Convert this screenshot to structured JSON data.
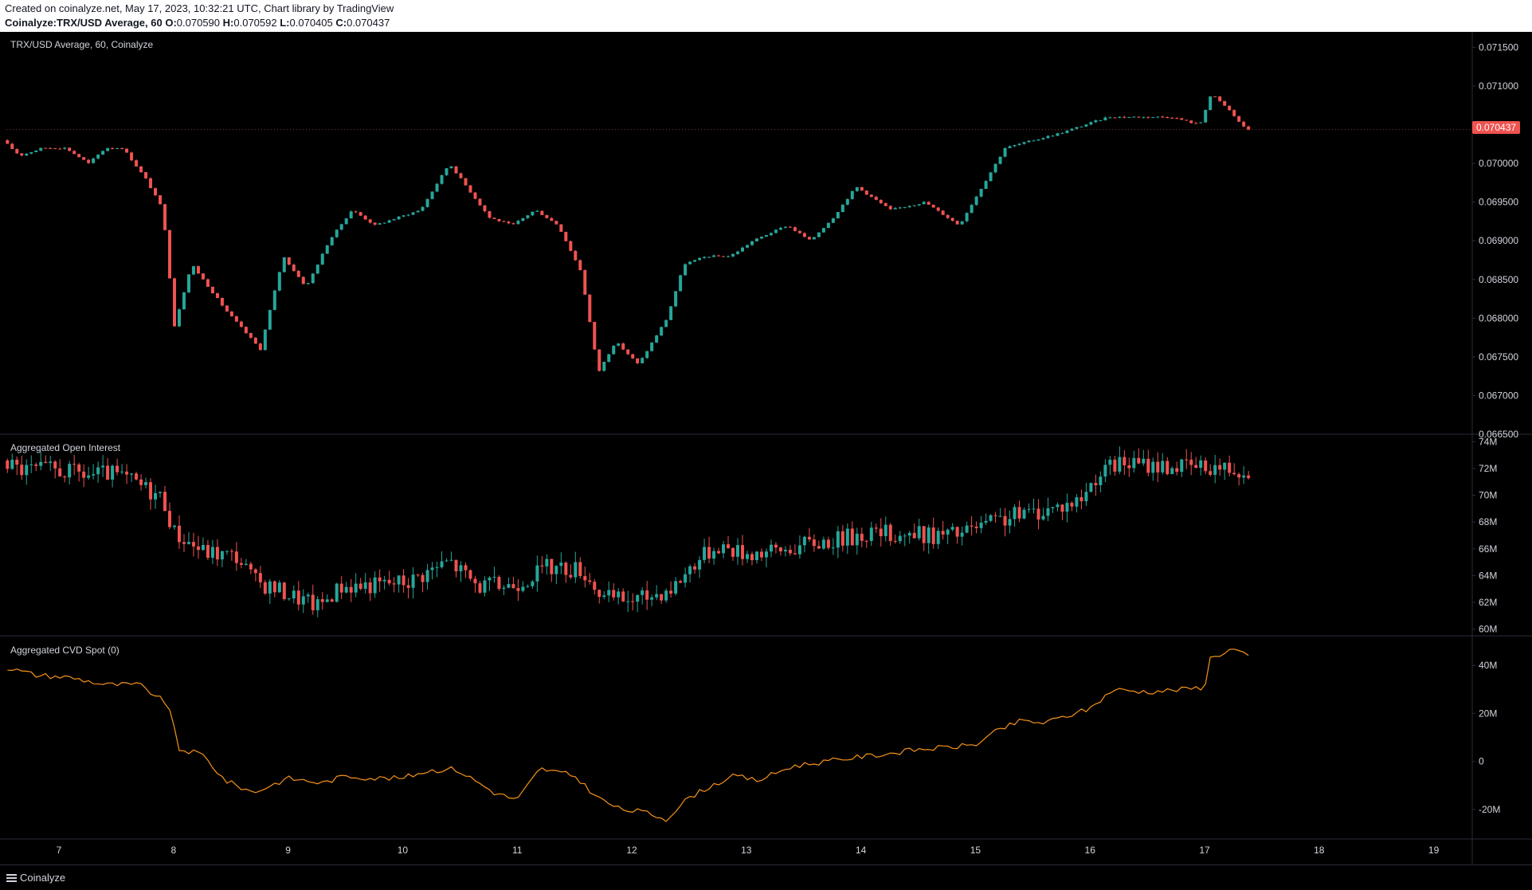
{
  "header": {
    "created_line": "Created on coinalyze.net, May 17, 2023, 10:32:21 UTC, Chart library by TradingView",
    "symbol": "Coinalyze:TRX/USD Average, 60",
    "o_label": "O:",
    "o_value": "0.070590",
    "h_label": "H:",
    "h_value": "0.070592",
    "l_label": "L:",
    "l_value": "0.070405",
    "c_label": "C:",
    "c_value": "0.070437"
  },
  "footer": {
    "brand": "Coinalyze"
  },
  "colors": {
    "up": "#26a69a",
    "down": "#ef5350",
    "cvd_line": "#f7931a",
    "grid": "#2a2e39",
    "text": "#d1d4dc",
    "background": "#000000"
  },
  "chart_data": [
    {
      "type": "candlestick",
      "title": "TRX/USD Average, 60, Coinalyze",
      "ylim": [
        0.0665,
        0.0717
      ],
      "y_ticks": [
        "0.071500",
        "0.071000",
        "0.070500",
        "0.070000",
        "0.069500",
        "0.069000",
        "0.068500",
        "0.068000",
        "0.067500",
        "0.067000",
        "0.066500"
      ],
      "last_price": "0.070437",
      "day_start": 6.55,
      "path_points": [
        [
          6.55,
          0.0703
        ],
        [
          6.7,
          0.0701
        ],
        [
          6.9,
          0.0702
        ],
        [
          7.1,
          0.0702
        ],
        [
          7.3,
          0.07
        ],
        [
          7.45,
          0.0702
        ],
        [
          7.6,
          0.0702
        ],
        [
          7.8,
          0.0698
        ],
        [
          7.95,
          0.0694
        ],
        [
          8.05,
          0.0679
        ],
        [
          8.2,
          0.0687
        ],
        [
          8.5,
          0.0681
        ],
        [
          8.8,
          0.0676
        ],
        [
          9.0,
          0.0688
        ],
        [
          9.2,
          0.0684
        ],
        [
          9.4,
          0.069
        ],
        [
          9.6,
          0.0694
        ],
        [
          9.8,
          0.0692
        ],
        [
          10.0,
          0.0693
        ],
        [
          10.2,
          0.0694
        ],
        [
          10.45,
          0.07
        ],
        [
          10.6,
          0.0697
        ],
        [
          10.8,
          0.0693
        ],
        [
          11.0,
          0.0692
        ],
        [
          11.2,
          0.0694
        ],
        [
          11.4,
          0.0692
        ],
        [
          11.6,
          0.0686
        ],
        [
          11.75,
          0.0673
        ],
        [
          11.9,
          0.0677
        ],
        [
          12.1,
          0.0674
        ],
        [
          12.35,
          0.068
        ],
        [
          12.5,
          0.0687
        ],
        [
          12.7,
          0.0688
        ],
        [
          12.9,
          0.0688
        ],
        [
          13.1,
          0.069
        ],
        [
          13.4,
          0.0692
        ],
        [
          13.6,
          0.069
        ],
        [
          13.8,
          0.0693
        ],
        [
          14.0,
          0.0697
        ],
        [
          14.3,
          0.0694
        ],
        [
          14.6,
          0.0695
        ],
        [
          14.9,
          0.0692
        ],
        [
          15.1,
          0.0697
        ],
        [
          15.3,
          0.0702
        ],
        [
          15.55,
          0.0703
        ],
        [
          15.8,
          0.0704
        ],
        [
          16.0,
          0.0705
        ],
        [
          16.2,
          0.0706
        ],
        [
          16.5,
          0.0706
        ],
        [
          16.75,
          0.0706
        ],
        [
          17.0,
          0.0705
        ],
        [
          17.1,
          0.0709
        ],
        [
          17.25,
          0.0707
        ],
        [
          17.4,
          0.07044
        ]
      ]
    },
    {
      "type": "candlestick",
      "title": "Aggregated Open Interest",
      "ylim": [
        59.5,
        74.5
      ],
      "y_ticks": [
        "74M",
        "72M",
        "70M",
        "68M",
        "66M",
        "64M",
        "62M",
        "60M"
      ],
      "path_points": [
        [
          6.55,
          72.6
        ],
        [
          6.7,
          71.9
        ],
        [
          7.0,
          71.9
        ],
        [
          7.3,
          71.5
        ],
        [
          7.5,
          71.6
        ],
        [
          7.7,
          71.0
        ],
        [
          7.95,
          69.8
        ],
        [
          8.05,
          67.2
        ],
        [
          8.3,
          65.8
        ],
        [
          8.6,
          65.4
        ],
        [
          8.75,
          63.6
        ],
        [
          9.0,
          62.8
        ],
        [
          9.3,
          61.7
        ],
        [
          9.5,
          63.2
        ],
        [
          9.8,
          63.3
        ],
        [
          10.1,
          63.6
        ],
        [
          10.45,
          65.1
        ],
        [
          10.7,
          63.2
        ],
        [
          11.0,
          63.3
        ],
        [
          11.3,
          64.6
        ],
        [
          11.6,
          64.5
        ],
        [
          11.8,
          62.3
        ],
        [
          12.1,
          62.2
        ],
        [
          12.4,
          63.1
        ],
        [
          12.6,
          65.1
        ],
        [
          12.8,
          66.3
        ],
        [
          13.0,
          65.7
        ],
        [
          13.3,
          65.8
        ],
        [
          13.6,
          66.4
        ],
        [
          13.9,
          66.8
        ],
        [
          14.1,
          67.2
        ],
        [
          14.4,
          67.1
        ],
        [
          14.7,
          67.0
        ],
        [
          14.9,
          67.1
        ],
        [
          15.1,
          67.7
        ],
        [
          15.4,
          68.5
        ],
        [
          15.7,
          69.0
        ],
        [
          15.95,
          69.6
        ],
        [
          16.1,
          71.5
        ],
        [
          16.3,
          72.4
        ],
        [
          16.5,
          72.3
        ],
        [
          16.7,
          72.2
        ],
        [
          17.0,
          72.1
        ],
        [
          17.1,
          72.2
        ],
        [
          17.25,
          72.0
        ],
        [
          17.4,
          71.9
        ]
      ]
    },
    {
      "type": "line",
      "title": "Aggregated CVD Spot (0)",
      "ylim": [
        -32,
        52
      ],
      "y_ticks": [
        "40M",
        "20M",
        "0",
        "-20M"
      ],
      "path_points": [
        [
          6.55,
          39
        ],
        [
          6.8,
          36
        ],
        [
          7.1,
          35
        ],
        [
          7.4,
          32
        ],
        [
          7.7,
          32
        ],
        [
          7.95,
          24
        ],
        [
          8.05,
          5
        ],
        [
          8.25,
          3
        ],
        [
          8.45,
          -8
        ],
        [
          8.7,
          -13
        ],
        [
          9.0,
          -7
        ],
        [
          9.3,
          -9
        ],
        [
          9.5,
          -6
        ],
        [
          9.75,
          -7
        ],
        [
          10.0,
          -7
        ],
        [
          10.2,
          -4
        ],
        [
          10.45,
          -3
        ],
        [
          10.6,
          -7
        ],
        [
          10.8,
          -13
        ],
        [
          11.0,
          -16
        ],
        [
          11.2,
          -3
        ],
        [
          11.5,
          -6
        ],
        [
          11.7,
          -15
        ],
        [
          11.9,
          -20
        ],
        [
          12.1,
          -21
        ],
        [
          12.3,
          -24
        ],
        [
          12.5,
          -15
        ],
        [
          12.7,
          -10
        ],
        [
          12.9,
          -6
        ],
        [
          13.1,
          -8
        ],
        [
          13.4,
          -2
        ],
        [
          13.7,
          0
        ],
        [
          14.0,
          2
        ],
        [
          14.2,
          3
        ],
        [
          14.5,
          5
        ],
        [
          14.8,
          6
        ],
        [
          15.0,
          7
        ],
        [
          15.2,
          13
        ],
        [
          15.4,
          17
        ],
        [
          15.6,
          16
        ],
        [
          15.8,
          19
        ],
        [
          16.0,
          22
        ],
        [
          16.2,
          30
        ],
        [
          16.5,
          29
        ],
        [
          16.8,
          30
        ],
        [
          17.0,
          31
        ],
        [
          17.05,
          43
        ],
        [
          17.25,
          47
        ],
        [
          17.4,
          43
        ]
      ]
    }
  ],
  "x_axis": {
    "labels": [
      "7",
      "8",
      "9",
      "10",
      "11",
      "12",
      "13",
      "14",
      "15",
      "16",
      "17",
      "18",
      "19"
    ]
  }
}
